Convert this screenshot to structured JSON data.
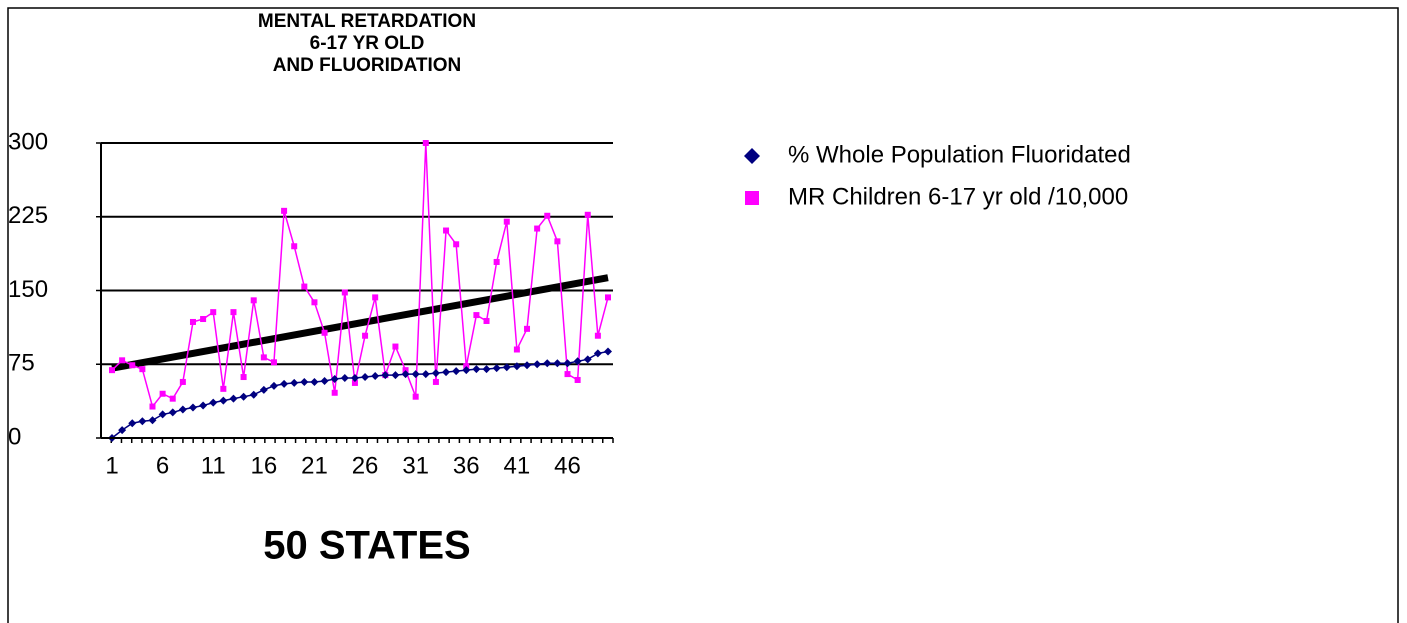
{
  "chart_data": {
    "type": "line",
    "title": [
      "MENTAL RETARDATION",
      "6-17 YR OLD",
      "AND FLUORIDATION"
    ],
    "x_label": "50 STATES",
    "categories": [
      "1",
      null,
      null,
      null,
      null,
      "6",
      null,
      null,
      null,
      null,
      "11",
      null,
      null,
      null,
      null,
      "16",
      null,
      null,
      null,
      null,
      "21",
      null,
      null,
      null,
      null,
      "26",
      null,
      null,
      null,
      null,
      "31",
      null,
      null,
      null,
      null,
      "36",
      null,
      null,
      null,
      null,
      "41",
      null,
      null,
      null,
      null,
      "46",
      null,
      null,
      null,
      null
    ],
    "series": [
      {
        "name": "% Whole Population Fluoridated",
        "color": "#000080",
        "marker": "diamond",
        "values": [
          0,
          8,
          15,
          17,
          18,
          24,
          26,
          29,
          31,
          33,
          36,
          38,
          40,
          42,
          44,
          49,
          53,
          55,
          56,
          57,
          57,
          58,
          60,
          61,
          61,
          62,
          63,
          64,
          64,
          65,
          65,
          65,
          66,
          67,
          68,
          69,
          70,
          70,
          71,
          72,
          73,
          74,
          75,
          76,
          76,
          76,
          78,
          80,
          86,
          88
        ]
      },
      {
        "name": "MR Children 6-17 yr old /10,000",
        "color": "#ff00ff",
        "marker": "square",
        "values": [
          69,
          79,
          74,
          70,
          32,
          45,
          40,
          57,
          118,
          121,
          128,
          50,
          128,
          62,
          140,
          82,
          77,
          231,
          195,
          154,
          138,
          107,
          46,
          148,
          56,
          104,
          143,
          64,
          93,
          69,
          42,
          300,
          57,
          211,
          197,
          73,
          125,
          119,
          179,
          220,
          90,
          111,
          213,
          226,
          200,
          65,
          59,
          227,
          104,
          143
        ]
      }
    ],
    "trendline": {
      "color": "#000000",
      "start": 71,
      "end": 163
    },
    "ylim": [
      0,
      300
    ],
    "yticks": [
      0,
      75,
      150,
      225,
      300
    ],
    "grid": true
  }
}
